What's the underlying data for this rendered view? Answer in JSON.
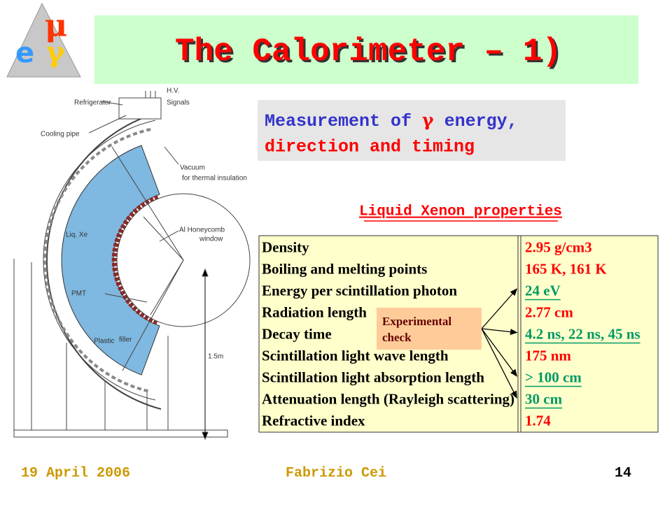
{
  "logo": {
    "mu": "μ",
    "e": "e",
    "gamma": "γ"
  },
  "header": {
    "title": "The Calorimeter – 1)"
  },
  "subtitle": {
    "line1_a": "Measurement of ",
    "line1_gamma": "γ",
    "line1_b": " energy,",
    "line2": "direction and timing"
  },
  "diagram": {
    "labels": {
      "refrigerator": "Refrigerator",
      "hv": "H.V.",
      "signals": "Signals",
      "cooling_pipe": "Cooling pipe",
      "vacuum": "Vacuum",
      "thermal": "for thermal insulation",
      "liq_xe": "Liq. Xe",
      "honeycomb": "Al Honeycomb",
      "window": "window",
      "pmt": "PMT",
      "plastic": "Plastic",
      "filler": "filler",
      "size": "1.5m"
    }
  },
  "table": {
    "title": "Liquid Xenon properties",
    "rows": [
      {
        "property": "Density",
        "value": "2.95 g/cm3",
        "experimental": false
      },
      {
        "property": "Boiling and melting points",
        "value": "165 K, 161 K",
        "experimental": false
      },
      {
        "property": "Energy per scintillation photon",
        "value": "24 eV",
        "experimental": true
      },
      {
        "property": "Radiation length",
        "value": "2.77 cm",
        "experimental": false
      },
      {
        "property": "Decay time",
        "value": "4.2 ns, 22 ns, 45 ns",
        "experimental": true
      },
      {
        "property": "Scintillation light wave length",
        "value": "175 nm",
        "experimental": false
      },
      {
        "property": "Scintillation light absorption length",
        "value": "> 100 cm",
        "experimental": true
      },
      {
        "property": "Attenuation length (Rayleigh scattering)",
        "value": "30 cm",
        "experimental": true
      },
      {
        "property": "Refractive index",
        "value": "1.74",
        "experimental": false
      }
    ],
    "callout": {
      "line1": "Experimental",
      "line2": "check"
    }
  },
  "footer": {
    "date": "19 April 2006",
    "author": "Fabrizio Cei",
    "page": "14"
  }
}
